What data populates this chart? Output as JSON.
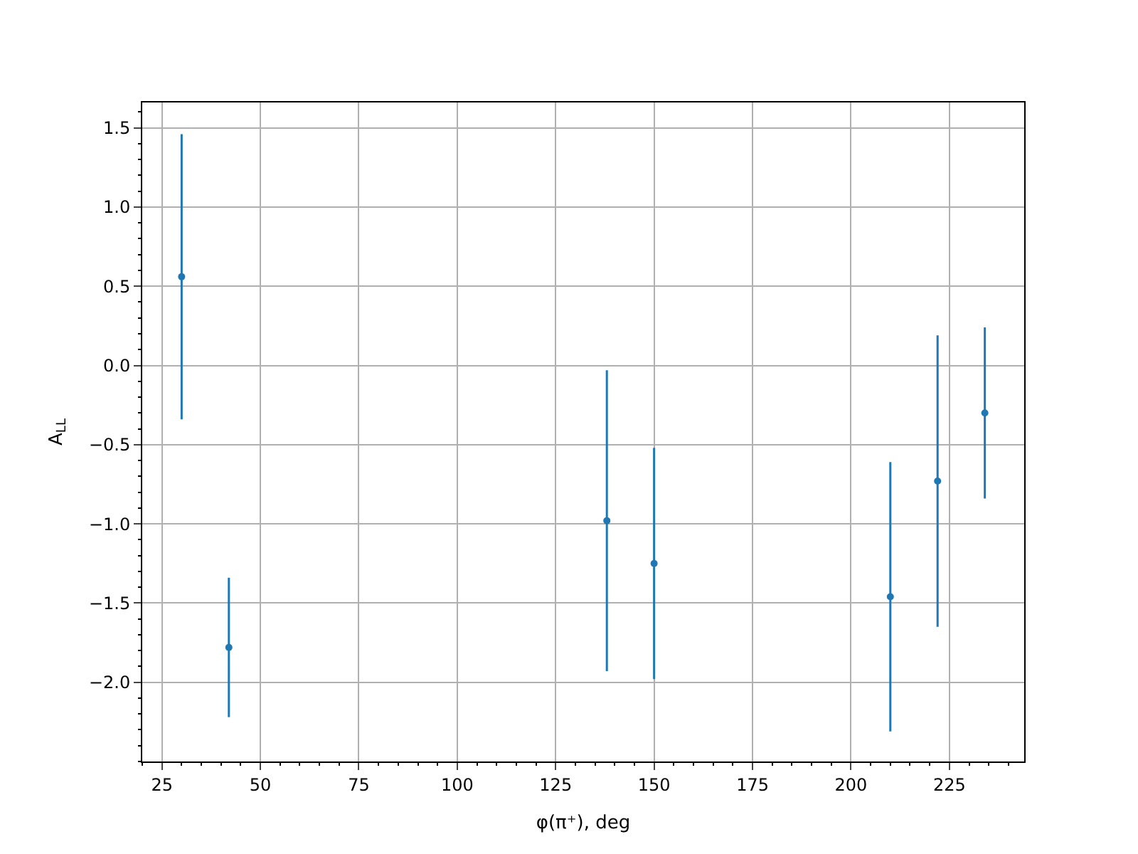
{
  "chart_data": {
    "type": "scatter",
    "xlabel": "φ(π⁺), deg",
    "ylabel": "A$_{LL}$",
    "x": [
      30,
      42,
      138,
      150,
      210,
      222,
      234
    ],
    "series": [
      {
        "color": "#1f77b4",
        "values": [
          0.56,
          -1.78,
          -0.98,
          -1.25,
          -1.46,
          -0.73,
          -0.3
        ],
        "errors": [
          0.9,
          0.44,
          0.95,
          0.73,
          0.85,
          0.92,
          0.54
        ]
      }
    ],
    "xlim": [
      20,
      244
    ],
    "ylim": [
      -2.5,
      1.66
    ],
    "xticks": [
      25,
      50,
      75,
      100,
      125,
      150,
      175,
      200,
      225
    ],
    "yticks": [
      {
        "value": -2.0,
        "label": "−2.0"
      },
      {
        "value": -1.5,
        "label": "−1.5"
      },
      {
        "value": -1.0,
        "label": "−1.0"
      },
      {
        "value": -0.5,
        "label": "−0.5"
      },
      {
        "value": 0.0,
        "label": "0.0"
      },
      {
        "value": 0.5,
        "label": "0.5"
      },
      {
        "value": 1.0,
        "label": "1.0"
      },
      {
        "value": 1.5,
        "label": "1.5"
      }
    ],
    "grid": true,
    "marker": "circle"
  }
}
